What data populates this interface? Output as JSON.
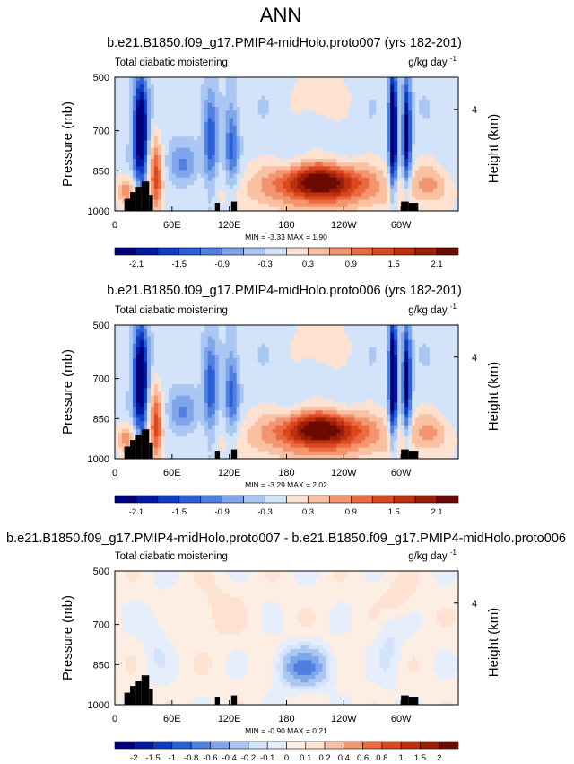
{
  "page_title": "ANN",
  "chart_data": [
    {
      "type": "heatmap",
      "title": "b.e21.B1850.f09_g17.PMIP4-midHolo.proto007 (yrs 182-201)",
      "left_label": "Total diabatic moistening",
      "units_label": "g/kg day",
      "units_exp": "-1",
      "ylabel": "Pressure (mb)",
      "ylabel_right": "Height (km)",
      "yticks": [
        "500",
        "700",
        "850",
        "1000"
      ],
      "right_ticks": [
        "4"
      ],
      "xticks": [
        "0",
        "60E",
        "120E",
        "180",
        "120W",
        "60W"
      ],
      "stats": "MIN = -3.33  MAX = 1.90",
      "colorbar_labels": [
        "-2.1",
        "-1.5",
        "-0.9",
        "-0.3",
        "0.3",
        "0.9",
        "1.5",
        "2.1"
      ],
      "n_levels": 16,
      "field": "full",
      "max_value": 1.9,
      "min_value": -3.33
    },
    {
      "type": "heatmap",
      "title": "b.e21.B1850.f09_g17.PMIP4-midHolo.proto006 (yrs 182-201)",
      "left_label": "Total diabatic moistening",
      "units_label": "g/kg day",
      "units_exp": "-1",
      "ylabel": "Pressure (mb)",
      "ylabel_right": "Height (km)",
      "yticks": [
        "500",
        "700",
        "850",
        "1000"
      ],
      "right_ticks": [
        "4"
      ],
      "xticks": [
        "0",
        "60E",
        "120E",
        "180",
        "120W",
        "60W"
      ],
      "stats": "MIN = -3.29  MAX = 2.02",
      "colorbar_labels": [
        "-2.1",
        "-1.5",
        "-0.9",
        "-0.3",
        "0.3",
        "0.9",
        "1.5",
        "2.1"
      ],
      "n_levels": 16,
      "field": "full",
      "max_value": 2.02,
      "min_value": -3.29
    },
    {
      "type": "heatmap",
      "title": "b.e21.B1850.f09_g17.PMIP4-midHolo.proto007 - b.e21.B1850.f09_g17.PMIP4-midHolo.proto006",
      "left_label": "Total diabatic moistening",
      "units_label": "g/kg day",
      "units_exp": "-1",
      "ylabel": "Pressure (mb)",
      "ylabel_right": "Height (km)",
      "yticks": [
        "500",
        "700",
        "850",
        "1000"
      ],
      "right_ticks": [
        "4"
      ],
      "xticks": [
        "0",
        "60E",
        "120E",
        "180",
        "120W",
        "60W"
      ],
      "stats": "MIN = -0.90  MAX =  0.21",
      "colorbar_labels": [
        "-2",
        "-1.5",
        "-1",
        "-0.8",
        "-0.6",
        "-0.4",
        "-0.2",
        "-0.1",
        "0",
        "0.1",
        "0.2",
        "0.4",
        "0.6",
        "0.8",
        "1",
        "1.5",
        "2"
      ],
      "n_levels": 18,
      "field": "diff",
      "max_value": 0.21,
      "min_value": -0.9
    }
  ],
  "colors": {
    "full_scale": [
      "#00007f",
      "#0019a0",
      "#0f3cc4",
      "#2b5fd8",
      "#4f80e0",
      "#7fa5ea",
      "#aac6f2",
      "#d3e3f9",
      "#fde2d2",
      "#f9c0a2",
      "#f39670",
      "#ec6a42",
      "#d9481e",
      "#bd300f",
      "#9c1d08",
      "#6b0b00"
    ],
    "diff_scale": [
      "#00007f",
      "#0019a0",
      "#0f3cc4",
      "#2b5fd8",
      "#4f80e0",
      "#7fa5ea",
      "#aac6f2",
      "#d3e3f9",
      "#e6eefb",
      "#fdeee4",
      "#fde2d2",
      "#f9c0a2",
      "#f39670",
      "#ec6a42",
      "#d9481e",
      "#bd300f",
      "#9c1d08",
      "#6b0b00"
    ],
    "topo": "#000000"
  }
}
